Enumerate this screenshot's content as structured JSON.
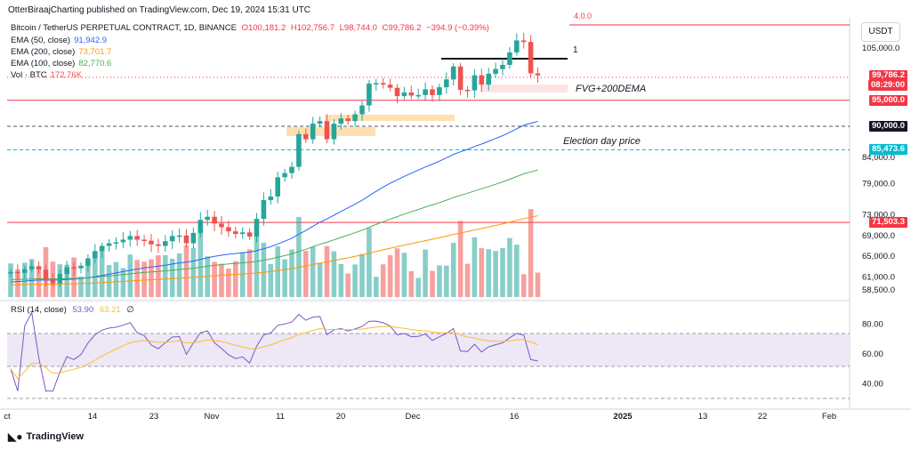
{
  "header": {
    "publisher_line": "OtterBiraajCharting published on TradingView.com, Dec 19, 2024 15:31 UTC"
  },
  "symbol_line": {
    "name": "Bitcoin / TetherUS PERPETUAL CONTRACT, 1D, BINANCE",
    "open": "O100,181.2",
    "high": "H102,756.7",
    "low": "L98,744.0",
    "close": "C99,786.2",
    "change": "−394.9 (−0.39%)"
  },
  "indicators": [
    {
      "label": "EMA (50, close)",
      "value": "91,942.9",
      "color": "#2962ff"
    },
    {
      "label": "EMA (200, close)",
      "value": "73,701.7",
      "color": "#ff9800"
    },
    {
      "label": "EMA (100, close)",
      "value": "82,770.6",
      "color": "#4caf50"
    },
    {
      "label": "Vol · BTC",
      "value": "172.76K",
      "color": "#ef5350"
    }
  ],
  "rsi_legend": {
    "label": "RSI (14, close)",
    "v1": "53.90",
    "v2": "63.21",
    "v3": "∅"
  },
  "currency": "USDT",
  "price_axis_ticks": [
    "105,000.0",
    "84,000.0",
    "79,000.0",
    "73,000.0",
    "69,000.0",
    "65,000.0",
    "61,000.0",
    "58,500.0"
  ],
  "rsi_axis_ticks": [
    "80.00",
    "60.00",
    "40.00"
  ],
  "price_tags": [
    {
      "text": "99,786.2",
      "color": "#f23645",
      "value": 99786.2
    },
    {
      "text": "08:29:00",
      "color": "#f23645",
      "value": 97900
    },
    {
      "text": "95,000.0",
      "color": "#f23645",
      "value": 95000
    },
    {
      "text": "90,000.0",
      "color": "#131722",
      "value": 90000
    },
    {
      "text": "85,473.6",
      "color": "#00bcd4",
      "value": 85473.6
    },
    {
      "text": "71,503.3",
      "color": "#f23645",
      "value": 71503.3
    }
  ],
  "time_axis": [
    "ct",
    "14",
    "23",
    "Nov",
    "11",
    "20",
    "Dec",
    "16",
    "2025",
    "13",
    "22",
    "Feb"
  ],
  "annotations": {
    "fvg": "FVG+200DEMA",
    "election": "Election day price",
    "marker_1": "1",
    "top_cut": "4.0.0"
  },
  "brand": "TradingView",
  "chart_data": {
    "type": "candlestick",
    "title": "Bitcoin / TetherUS PERPETUAL CONTRACT, 1D, BINANCE",
    "ylim": [
      57000,
      110000
    ],
    "candles_close": [
      62000,
      61800,
      62500,
      63100,
      62400,
      60600,
      59800,
      61600,
      62900,
      62700,
      63200,
      64600,
      66000,
      67000,
      67500,
      67700,
      68200,
      68900,
      68200,
      68000,
      67300,
      67000,
      67900,
      68900,
      69000,
      67500,
      69500,
      72000,
      72600,
      71300,
      70600,
      69800,
      69300,
      69600,
      68800,
      72200,
      75800,
      76500,
      80200,
      81000,
      82200,
      88500,
      87500,
      90500,
      91000,
      87500,
      90500,
      91500,
      91000,
      92300,
      94000,
      98200,
      98300,
      98000,
      97400,
      95800,
      96500,
      95900,
      96000,
      97100,
      96000,
      97500,
      99000,
      101500,
      97000,
      96900,
      99800,
      98000,
      100100,
      101000,
      101800,
      104200,
      106500,
      106200,
      100181,
      99786
    ],
    "ema50_last": 91942.9,
    "ema100_last": 82770.6,
    "ema200_last": 73701.7,
    "horizontal_levels": [
      95000,
      90000,
      85473.6,
      71503.3
    ],
    "rsi_last": 53.9,
    "rsi_ma_last": 63.21
  }
}
